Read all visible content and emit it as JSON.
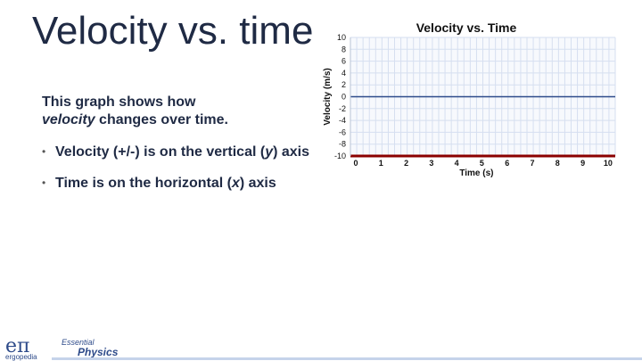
{
  "slide": {
    "title": "Velocity vs. time",
    "intro_prefix": "This graph shows how",
    "intro_em": "velocity",
    "intro_suffix": " changes over time.",
    "bullets": [
      {
        "a": "Velocity (+/-) is on the vertical (",
        "var": "y",
        "b": ") axis"
      },
      {
        "a": "Time is on the horizontal (",
        "var": "x",
        "b": ") axis"
      }
    ],
    "bullet_glyph": "•"
  },
  "logo": {
    "mark": "eπ",
    "name": "ergopedia",
    "essential": "Essential",
    "physics": "Physics"
  },
  "chart_data": {
    "type": "line",
    "title": "Velocity vs. Time",
    "xlabel": "Time (s)",
    "ylabel": "Velocity (m/s)",
    "xlim": [
      0,
      10.5
    ],
    "ylim": [
      -10,
      10
    ],
    "xticks": [
      0,
      1,
      2,
      3,
      4,
      5,
      6,
      7,
      8,
      9,
      10
    ],
    "yticks": [
      10,
      8,
      6,
      4,
      2,
      0,
      -2,
      -4,
      -6,
      -8,
      -10
    ],
    "grid": true,
    "series": [
      {
        "x": [
          0,
          10.5
        ],
        "y": [
          0,
          0
        ],
        "color": "#2e4b8a"
      }
    ],
    "colors": {
      "grid": "#d6dff0",
      "axis": "#8b0000",
      "plot_bg": "#f7f9fd"
    }
  }
}
